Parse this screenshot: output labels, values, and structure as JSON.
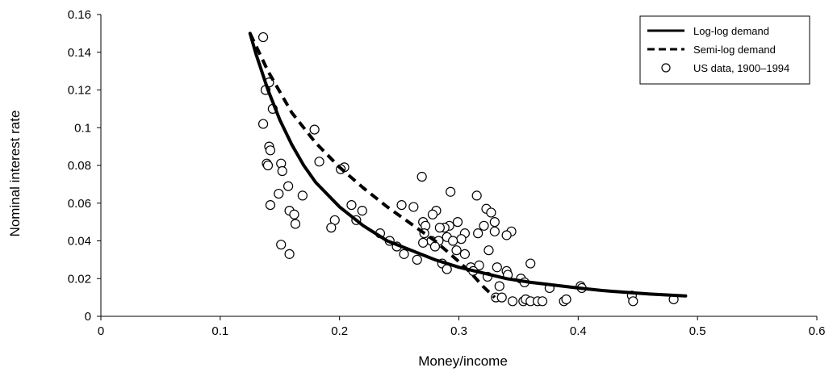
{
  "chart_data": {
    "type": "scatter",
    "title": "",
    "xlabel": "Money/income",
    "ylabel": "Nominal interest rate",
    "xlim": [
      0,
      0.6
    ],
    "ylim": [
      0,
      0.16
    ],
    "xticks": [
      "0",
      "0.1",
      "0.2",
      "0.3",
      "0.4",
      "0.5",
      "0.6"
    ],
    "yticks": [
      "0",
      "0.02",
      "0.04",
      "0.06",
      "0.08",
      "0.1",
      "0.12",
      "0.14",
      "0.16"
    ],
    "grid": false,
    "legend_position": "top-right",
    "curves": [
      {
        "name": "Log-log demand",
        "style": "solid",
        "color": "#000000",
        "points": [
          [
            0.125,
            0.15
          ],
          [
            0.13,
            0.139
          ],
          [
            0.14,
            0.12
          ],
          [
            0.15,
            0.104
          ],
          [
            0.16,
            0.091
          ],
          [
            0.17,
            0.08
          ],
          [
            0.18,
            0.071
          ],
          [
            0.2,
            0.058
          ],
          [
            0.22,
            0.048
          ],
          [
            0.24,
            0.04
          ],
          [
            0.26,
            0.035
          ],
          [
            0.28,
            0.03
          ],
          [
            0.3,
            0.026
          ],
          [
            0.32,
            0.023
          ],
          [
            0.34,
            0.02
          ],
          [
            0.36,
            0.018
          ],
          [
            0.38,
            0.0165
          ],
          [
            0.4,
            0.015
          ],
          [
            0.42,
            0.0137
          ],
          [
            0.44,
            0.0127
          ],
          [
            0.46,
            0.0118
          ],
          [
            0.49,
            0.0108
          ]
        ]
      },
      {
        "name": "Semi-log demand",
        "style": "dashed",
        "color": "#000000",
        "points": [
          [
            0.125,
            0.15
          ],
          [
            0.14,
            0.13
          ],
          [
            0.16,
            0.108
          ],
          [
            0.18,
            0.092
          ],
          [
            0.2,
            0.079
          ],
          [
            0.22,
            0.068
          ],
          [
            0.24,
            0.058
          ],
          [
            0.26,
            0.049
          ],
          [
            0.28,
            0.04
          ],
          [
            0.3,
            0.029
          ],
          [
            0.31,
            0.023
          ],
          [
            0.32,
            0.016
          ],
          [
            0.33,
            0.01
          ]
        ]
      }
    ],
    "series": [
      {
        "name": "US data, 1900–1994",
        "marker": "open-circle",
        "points": [
          [
            0.136,
            0.148
          ],
          [
            0.141,
            0.124
          ],
          [
            0.138,
            0.12
          ],
          [
            0.144,
            0.11
          ],
          [
            0.136,
            0.102
          ],
          [
            0.179,
            0.099
          ],
          [
            0.141,
            0.09
          ],
          [
            0.142,
            0.088
          ],
          [
            0.183,
            0.082
          ],
          [
            0.139,
            0.081
          ],
          [
            0.151,
            0.081
          ],
          [
            0.14,
            0.08
          ],
          [
            0.204,
            0.079
          ],
          [
            0.201,
            0.078
          ],
          [
            0.152,
            0.077
          ],
          [
            0.269,
            0.074
          ],
          [
            0.157,
            0.069
          ],
          [
            0.293,
            0.066
          ],
          [
            0.149,
            0.065
          ],
          [
            0.169,
            0.064
          ],
          [
            0.315,
            0.064
          ],
          [
            0.21,
            0.059
          ],
          [
            0.142,
            0.059
          ],
          [
            0.252,
            0.059
          ],
          [
            0.262,
            0.058
          ],
          [
            0.323,
            0.057
          ],
          [
            0.219,
            0.056
          ],
          [
            0.158,
            0.056
          ],
          [
            0.281,
            0.056
          ],
          [
            0.278,
            0.054
          ],
          [
            0.327,
            0.055
          ],
          [
            0.162,
            0.054
          ],
          [
            0.196,
            0.051
          ],
          [
            0.214,
            0.051
          ],
          [
            0.299,
            0.05
          ],
          [
            0.27,
            0.05
          ],
          [
            0.163,
            0.049
          ],
          [
            0.33,
            0.05
          ],
          [
            0.292,
            0.048
          ],
          [
            0.193,
            0.047
          ],
          [
            0.272,
            0.048
          ],
          [
            0.288,
            0.047
          ],
          [
            0.321,
            0.048
          ],
          [
            0.284,
            0.047
          ],
          [
            0.305,
            0.044
          ],
          [
            0.234,
            0.044
          ],
          [
            0.271,
            0.044
          ],
          [
            0.302,
            0.041
          ],
          [
            0.277,
            0.04
          ],
          [
            0.27,
            0.039
          ],
          [
            0.283,
            0.04
          ],
          [
            0.29,
            0.042
          ],
          [
            0.344,
            0.045
          ],
          [
            0.34,
            0.043
          ],
          [
            0.295,
            0.04
          ],
          [
            0.242,
            0.04
          ],
          [
            0.316,
            0.044
          ],
          [
            0.33,
            0.045
          ],
          [
            0.151,
            0.038
          ],
          [
            0.248,
            0.037
          ],
          [
            0.28,
            0.037
          ],
          [
            0.298,
            0.035
          ],
          [
            0.325,
            0.035
          ],
          [
            0.158,
            0.033
          ],
          [
            0.254,
            0.033
          ],
          [
            0.305,
            0.033
          ],
          [
            0.265,
            0.03
          ],
          [
            0.286,
            0.028
          ],
          [
            0.29,
            0.025
          ],
          [
            0.31,
            0.026
          ],
          [
            0.317,
            0.027
          ],
          [
            0.332,
            0.026
          ],
          [
            0.36,
            0.028
          ],
          [
            0.312,
            0.024
          ],
          [
            0.34,
            0.024
          ],
          [
            0.341,
            0.022
          ],
          [
            0.324,
            0.021
          ],
          [
            0.352,
            0.02
          ],
          [
            0.355,
            0.018
          ],
          [
            0.334,
            0.016
          ],
          [
            0.376,
            0.015
          ],
          [
            0.402,
            0.016
          ],
          [
            0.403,
            0.015
          ],
          [
            0.331,
            0.01
          ],
          [
            0.336,
            0.01
          ],
          [
            0.345,
            0.008
          ],
          [
            0.354,
            0.008
          ],
          [
            0.356,
            0.009
          ],
          [
            0.36,
            0.008
          ],
          [
            0.366,
            0.008
          ],
          [
            0.37,
            0.008
          ],
          [
            0.388,
            0.008
          ],
          [
            0.39,
            0.009
          ],
          [
            0.445,
            0.011
          ],
          [
            0.446,
            0.008
          ],
          [
            0.48,
            0.009
          ]
        ]
      }
    ],
    "legend": [
      {
        "label": "Log-log demand",
        "kind": "solid"
      },
      {
        "label": "Semi-log demand",
        "kind": "dashed"
      },
      {
        "label": "US data, 1900–1994",
        "kind": "circle"
      }
    ]
  }
}
